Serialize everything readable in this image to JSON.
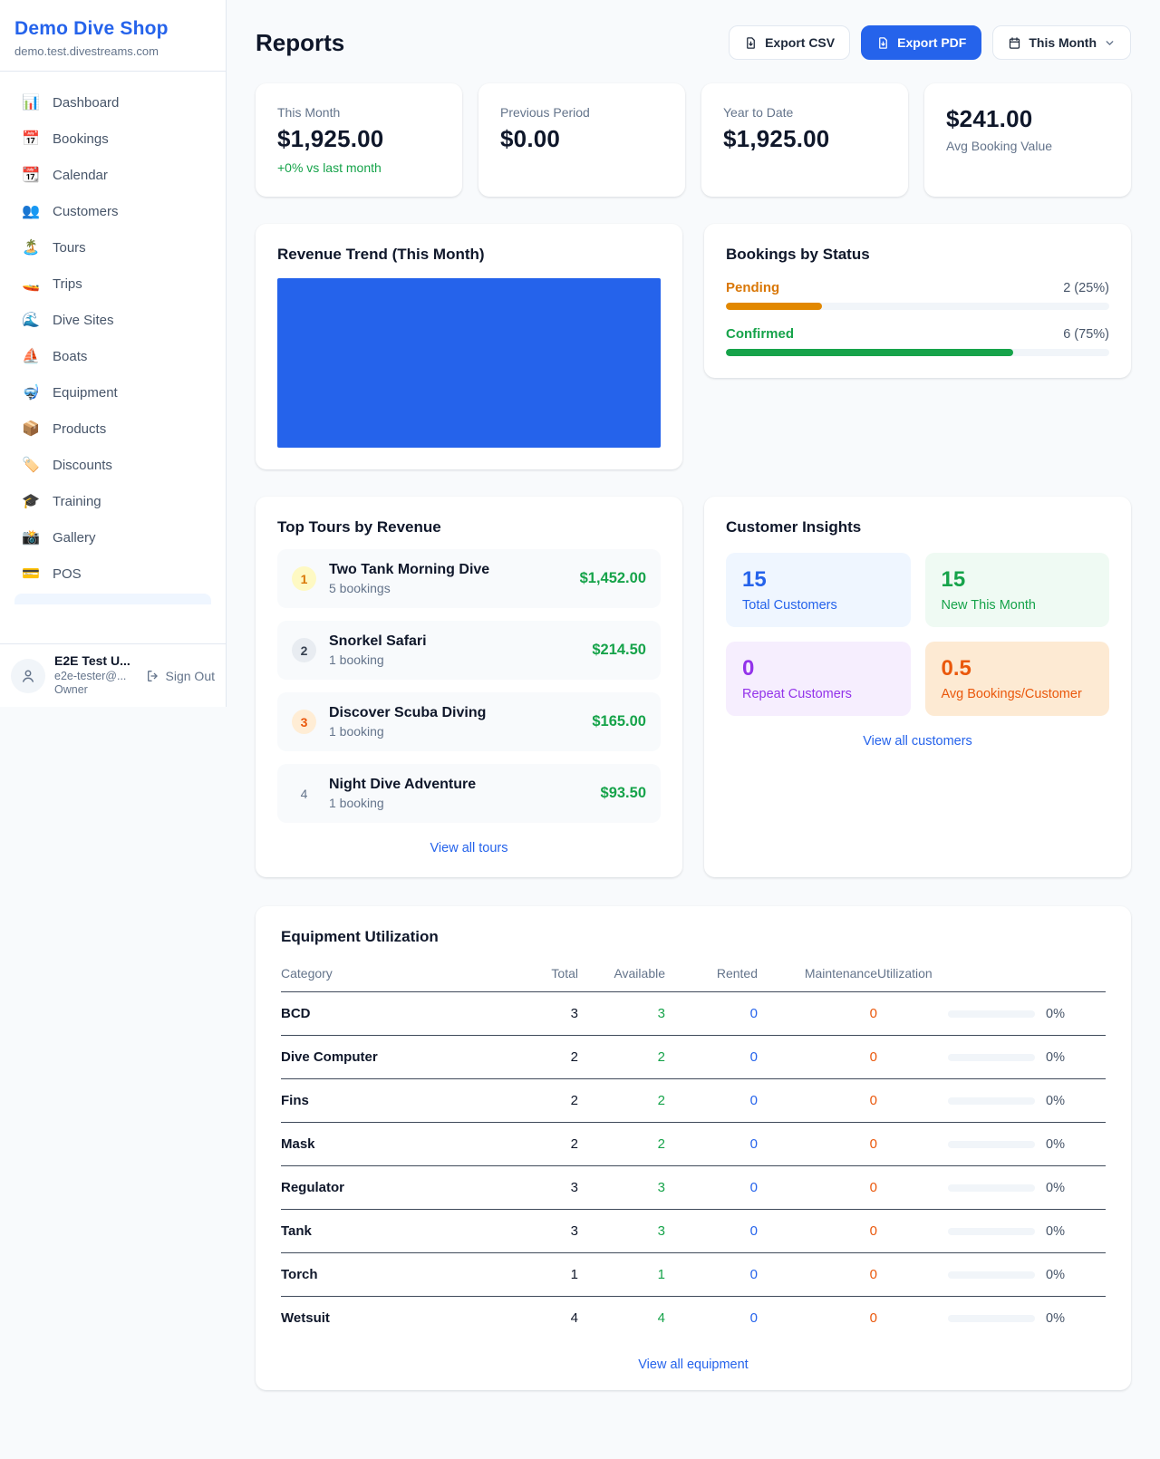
{
  "colors": {
    "accent_blue": "#2563eb",
    "green": "#16a34a",
    "orange_pending": "#d97706",
    "orange_maintenance": "#ea580c",
    "purple": "#9333ea"
  },
  "sidebar": {
    "brand": "Demo Dive Shop",
    "domain": "demo.test.divestreams.com",
    "items": [
      {
        "icon": "📊",
        "label": "Dashboard"
      },
      {
        "icon": "📅",
        "label": "Bookings"
      },
      {
        "icon": "📆",
        "label": "Calendar"
      },
      {
        "icon": "👥",
        "label": "Customers"
      },
      {
        "icon": "🏝️",
        "label": "Tours"
      },
      {
        "icon": "🚤",
        "label": "Trips"
      },
      {
        "icon": "🌊",
        "label": "Dive Sites"
      },
      {
        "icon": "⛵",
        "label": "Boats"
      },
      {
        "icon": "🤿",
        "label": "Equipment"
      },
      {
        "icon": "📦",
        "label": "Products"
      },
      {
        "icon": "🏷️",
        "label": "Discounts"
      },
      {
        "icon": "🎓",
        "label": "Training"
      },
      {
        "icon": "📸",
        "label": "Gallery"
      },
      {
        "icon": "💳",
        "label": "POS"
      }
    ],
    "user": {
      "name": "E2E Test U...",
      "email": "e2e-tester@...",
      "role": "Owner",
      "sign_out": "Sign Out"
    }
  },
  "header": {
    "title": "Reports",
    "export_csv": "Export CSV",
    "export_pdf": "Export PDF",
    "period": "This Month"
  },
  "stats": [
    {
      "label": "This Month",
      "value": "$1,925.00",
      "delta": "+0% vs last month"
    },
    {
      "label": "Previous Period",
      "value": "$0.00"
    },
    {
      "label": "Year to Date",
      "value": "$1,925.00"
    },
    {
      "label": "Avg Booking Value",
      "value": "$241.00"
    }
  ],
  "revenue_trend": {
    "title": "Revenue Trend (This Month)",
    "chart": {
      "type": "bar",
      "note": "single full-width bar filling plot area",
      "color": "#2563eb"
    }
  },
  "bookings_by_status": {
    "title": "Bookings by Status",
    "rows": [
      {
        "label": "Pending",
        "count_label": "2 (25%)",
        "pct": 25
      },
      {
        "label": "Confirmed",
        "count_label": "6 (75%)",
        "pct": 75
      }
    ]
  },
  "top_tours": {
    "title": "Top Tours by Revenue",
    "rows": [
      {
        "rank": "1",
        "name": "Two Tank Morning Dive",
        "bookings": "5 bookings",
        "amount": "$1,452.00"
      },
      {
        "rank": "2",
        "name": "Snorkel Safari",
        "bookings": "1 booking",
        "amount": "$214.50"
      },
      {
        "rank": "3",
        "name": "Discover Scuba Diving",
        "bookings": "1 booking",
        "amount": "$165.00"
      },
      {
        "rank": "4",
        "name": "Night Dive Adventure",
        "bookings": "1 booking",
        "amount": "$93.50"
      }
    ],
    "link": "View all tours"
  },
  "customer_insights": {
    "title": "Customer Insights",
    "tiles": [
      {
        "value": "15",
        "label": "Total Customers"
      },
      {
        "value": "15",
        "label": "New This Month"
      },
      {
        "value": "0",
        "label": "Repeat Customers"
      },
      {
        "value": "0.5",
        "label": "Avg Bookings/Customer"
      }
    ],
    "link": "View all customers"
  },
  "equipment": {
    "title": "Equipment Utilization",
    "columns": [
      "Category",
      "Total",
      "Available",
      "Rented",
      "Maintenance",
      "Utilization"
    ],
    "rows": [
      {
        "category": "BCD",
        "total": "3",
        "available": "3",
        "rented": "0",
        "maintenance": "0",
        "utilization": "0%",
        "pct": 0
      },
      {
        "category": "Dive Computer",
        "total": "2",
        "available": "2",
        "rented": "0",
        "maintenance": "0",
        "utilization": "0%",
        "pct": 0
      },
      {
        "category": "Fins",
        "total": "2",
        "available": "2",
        "rented": "0",
        "maintenance": "0",
        "utilization": "0%",
        "pct": 0
      },
      {
        "category": "Mask",
        "total": "2",
        "available": "2",
        "rented": "0",
        "maintenance": "0",
        "utilization": "0%",
        "pct": 0
      },
      {
        "category": "Regulator",
        "total": "3",
        "available": "3",
        "rented": "0",
        "maintenance": "0",
        "utilization": "0%",
        "pct": 0
      },
      {
        "category": "Tank",
        "total": "3",
        "available": "3",
        "rented": "0",
        "maintenance": "0",
        "utilization": "0%",
        "pct": 0
      },
      {
        "category": "Torch",
        "total": "1",
        "available": "1",
        "rented": "0",
        "maintenance": "0",
        "utilization": "0%",
        "pct": 0
      },
      {
        "category": "Wetsuit",
        "total": "4",
        "available": "4",
        "rented": "0",
        "maintenance": "0",
        "utilization": "0%",
        "pct": 0
      }
    ],
    "link": "View all equipment"
  }
}
